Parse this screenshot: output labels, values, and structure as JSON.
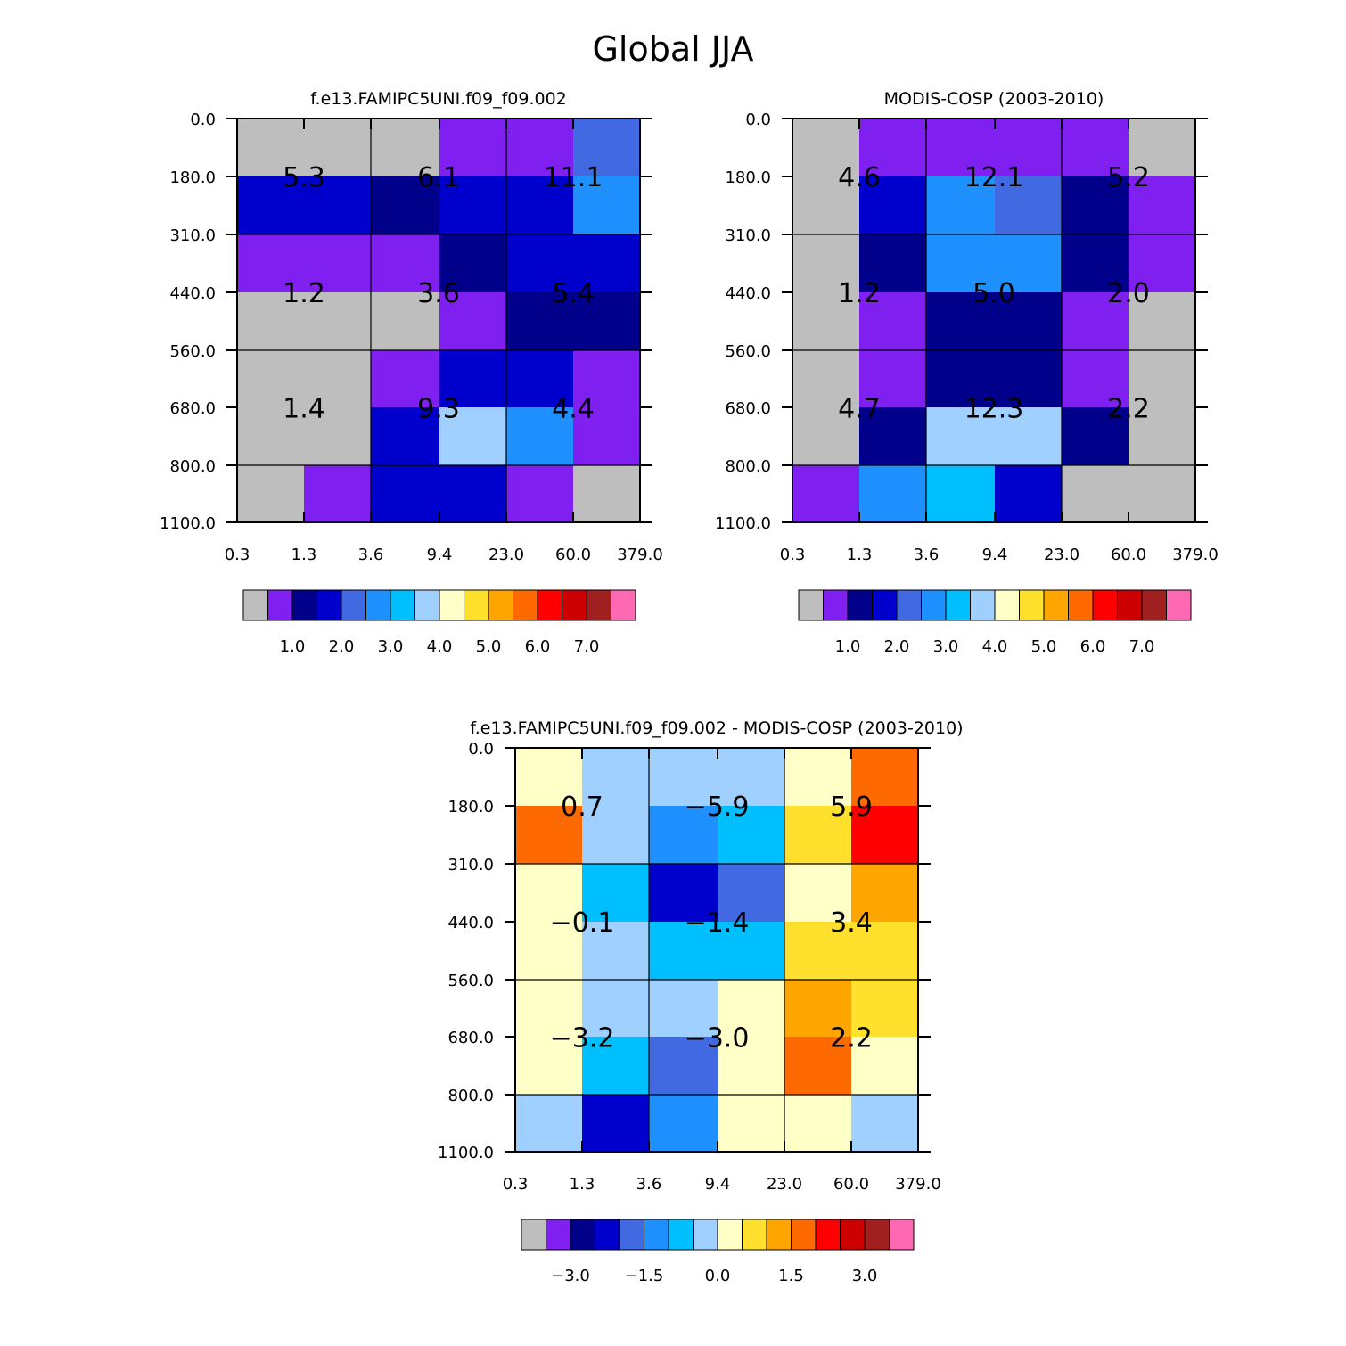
{
  "page_title": "Global JJA",
  "chart_data": [
    {
      "type": "heatmap",
      "title": "f.e13.FAMIPC5UNI.f09_f09.002",
      "x_tick_labels": [
        "0.3",
        "1.3",
        "3.6",
        "9.4",
        "23.0",
        "60.0",
        "379.0"
      ],
      "y_tick_labels": [
        "0.0",
        "180.0",
        "310.0",
        "440.0",
        "560.0",
        "680.0",
        "800.0",
        "1100.0"
      ],
      "cell_colors": [
        [
          "#bebebe",
          "#bebebe",
          "#bebebe",
          "#8020f0",
          "#8020f0",
          "#4169e1"
        ],
        [
          "#0000cd",
          "#0000cd",
          "#00008b",
          "#0000cd",
          "#0000cd",
          "#1e90ff"
        ],
        [
          "#8020f0",
          "#8020f0",
          "#8020f0",
          "#00008b",
          "#0000cd",
          "#0000cd"
        ],
        [
          "#bebebe",
          "#bebebe",
          "#bebebe",
          "#8020f0",
          "#00008b",
          "#00008b"
        ],
        [
          "#bebebe",
          "#bebebe",
          "#8020f0",
          "#0000cd",
          "#0000cd",
          "#8020f0"
        ],
        [
          "#bebebe",
          "#bebebe",
          "#0000cd",
          "#a0d0ff",
          "#1e90ff",
          "#8020f0"
        ],
        [
          "#bebebe",
          "#8020f0",
          "#0000cd",
          "#0000cd",
          "#8020f0",
          "#bebebe"
        ]
      ],
      "group_labels": [
        [
          "5.3",
          "6.1",
          "11.1"
        ],
        [
          "1.2",
          "3.6",
          "5.4"
        ],
        [
          "1.4",
          "9.3",
          "4.4"
        ]
      ],
      "colorbar": {
        "colors": [
          "#bebebe",
          "#8020f0",
          "#00008b",
          "#0000cd",
          "#4169e1",
          "#1e90ff",
          "#00bfff",
          "#a0d0ff",
          "#ffffc8",
          "#ffe12d",
          "#ffa500",
          "#ff6a00",
          "#ff0000",
          "#cd0000",
          "#a02020",
          "#ff69b4"
        ],
        "tick_labels": [
          "1.0",
          "2.0",
          "3.0",
          "4.0",
          "5.0",
          "6.0",
          "7.0"
        ]
      }
    },
    {
      "type": "heatmap",
      "title": "MODIS-COSP (2003-2010)",
      "x_tick_labels": [
        "0.3",
        "1.3",
        "3.6",
        "9.4",
        "23.0",
        "60.0",
        "379.0"
      ],
      "y_tick_labels": [
        "0.0",
        "180.0",
        "310.0",
        "440.0",
        "560.0",
        "680.0",
        "800.0",
        "1100.0"
      ],
      "cell_colors": [
        [
          "#bebebe",
          "#8020f0",
          "#8020f0",
          "#8020f0",
          "#8020f0",
          "#bebebe"
        ],
        [
          "#bebebe",
          "#0000cd",
          "#1e90ff",
          "#4169e1",
          "#00008b",
          "#8020f0"
        ],
        [
          "#bebebe",
          "#00008b",
          "#1e90ff",
          "#1e90ff",
          "#00008b",
          "#8020f0"
        ],
        [
          "#bebebe",
          "#8020f0",
          "#00008b",
          "#00008b",
          "#8020f0",
          "#bebebe"
        ],
        [
          "#bebebe",
          "#8020f0",
          "#00008b",
          "#00008b",
          "#8020f0",
          "#bebebe"
        ],
        [
          "#bebebe",
          "#00008b",
          "#a0d0ff",
          "#a0d0ff",
          "#00008b",
          "#bebebe"
        ],
        [
          "#8020f0",
          "#1e90ff",
          "#00bfff",
          "#0000cd",
          "#bebebe",
          "#bebebe"
        ]
      ],
      "group_labels": [
        [
          "4.6",
          "12.1",
          "5.2"
        ],
        [
          "1.2",
          "5.0",
          "2.0"
        ],
        [
          "4.7",
          "12.3",
          "2.2"
        ]
      ],
      "colorbar": {
        "colors": [
          "#bebebe",
          "#8020f0",
          "#00008b",
          "#0000cd",
          "#4169e1",
          "#1e90ff",
          "#00bfff",
          "#a0d0ff",
          "#ffffc8",
          "#ffe12d",
          "#ffa500",
          "#ff6a00",
          "#ff0000",
          "#cd0000",
          "#a02020",
          "#ff69b4"
        ],
        "tick_labels": [
          "1.0",
          "2.0",
          "3.0",
          "4.0",
          "5.0",
          "6.0",
          "7.0"
        ]
      }
    },
    {
      "type": "heatmap",
      "title": "f.e13.FAMIPC5UNI.f09_f09.002 - MODIS-COSP (2003-2010)",
      "x_tick_labels": [
        "0.3",
        "1.3",
        "3.6",
        "9.4",
        "23.0",
        "60.0",
        "379.0"
      ],
      "y_tick_labels": [
        "0.0",
        "180.0",
        "310.0",
        "440.0",
        "560.0",
        "680.0",
        "800.0",
        "1100.0"
      ],
      "cell_colors": [
        [
          "#ffffc8",
          "#a0d0ff",
          "#a0d0ff",
          "#a0d0ff",
          "#ffffc8",
          "#ff6a00"
        ],
        [
          "#ff6a00",
          "#a0d0ff",
          "#1e90ff",
          "#00bfff",
          "#ffe12d",
          "#ff0000"
        ],
        [
          "#ffffc8",
          "#00bfff",
          "#0000cd",
          "#4169e1",
          "#ffffc8",
          "#ffa500"
        ],
        [
          "#ffffc8",
          "#a0d0ff",
          "#00bfff",
          "#00bfff",
          "#ffe12d",
          "#ffe12d"
        ],
        [
          "#ffffc8",
          "#a0d0ff",
          "#a0d0ff",
          "#ffffc8",
          "#ffa500",
          "#ffe12d"
        ],
        [
          "#ffffc8",
          "#00bfff",
          "#4169e1",
          "#ffffc8",
          "#ff6a00",
          "#ffffc8"
        ],
        [
          "#a0d0ff",
          "#0000cd",
          "#1e90ff",
          "#ffffc8",
          "#ffffc8",
          "#a0d0ff"
        ]
      ],
      "group_labels": [
        [
          "0.7",
          "−5.9",
          "5.9"
        ],
        [
          "−0.1",
          "−1.4",
          "3.4"
        ],
        [
          "−3.2",
          "−3.0",
          "2.2"
        ]
      ],
      "colorbar": {
        "colors": [
          "#bebebe",
          "#8020f0",
          "#00008b",
          "#0000cd",
          "#4169e1",
          "#1e90ff",
          "#00bfff",
          "#a0d0ff",
          "#ffffc8",
          "#ffe12d",
          "#ffa500",
          "#ff6a00",
          "#ff0000",
          "#cd0000",
          "#a02020",
          "#ff69b4"
        ],
        "tick_labels": [
          "−3.0",
          "−1.5",
          "0.0",
          "1.5",
          "3.0"
        ]
      }
    }
  ]
}
